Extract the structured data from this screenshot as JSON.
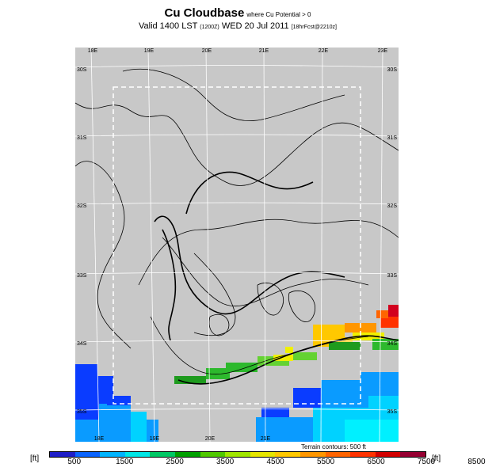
{
  "header": {
    "title": "Cu Cloudbase",
    "title_note": "where Cu Potential > 0",
    "subtitle_main": "Valid 1400 LST",
    "subtitle_code": "(1200Z)",
    "subtitle_date": "WED 20 Jul 2011",
    "subtitle_run": "[18hrFcst@2210z]"
  },
  "map": {
    "lon_labels": [
      "18E",
      "19E",
      "20E",
      "21E",
      "22E",
      "23E"
    ],
    "lat_labels": [
      "30S",
      "31S",
      "32S",
      "33S",
      "34S",
      "35S"
    ],
    "terrain_note": "Terrain contours: 500 ft",
    "background_color": "#c8c8c8",
    "grid_color": "#ffffff",
    "ocean_colors": [
      "#0a3cff",
      "#0a9bff",
      "#00d2ff",
      "#00f0ff"
    ],
    "cloudbase_colors": [
      "#1e9b1e",
      "#2db92d",
      "#64d232",
      "#f0f000",
      "#ffc800",
      "#ff9600",
      "#ff6400",
      "#ff3200",
      "#d2001e"
    ]
  },
  "legend": {
    "unit_left": "[ft]",
    "unit_right": "[ft]",
    "labels": [
      "500",
      "1500",
      "2500",
      "3500",
      "4500",
      "5500",
      "6500",
      "7500",
      "8500"
    ],
    "colors": [
      "#1e1ec8",
      "#0a64ff",
      "#00b4ff",
      "#00e6e6",
      "#00c864",
      "#00a000",
      "#50c800",
      "#a0e600",
      "#e6e600",
      "#ffc800",
      "#ff9600",
      "#ff6400",
      "#ff3200",
      "#d20000",
      "#960032"
    ]
  }
}
